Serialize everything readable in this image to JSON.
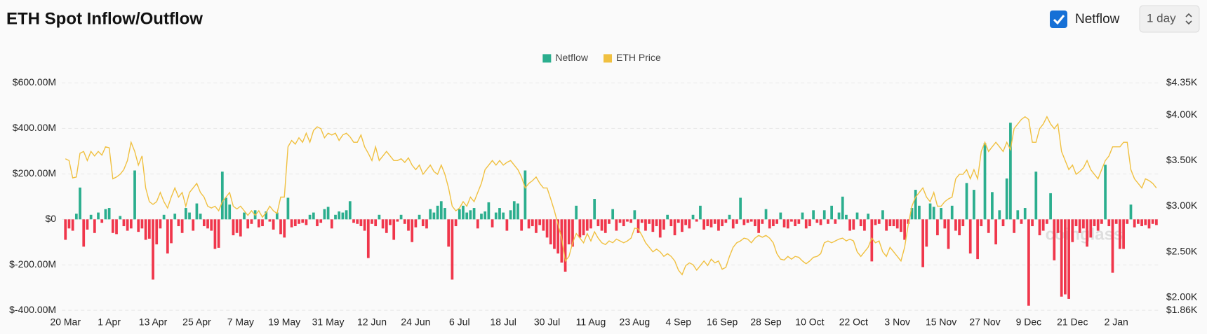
{
  "chart_data": {
    "type": "bar",
    "title": "ETH Spot Inflow/Outflow",
    "categories": [
      "20 Mar",
      null,
      null,
      null,
      null,
      null,
      null,
      null,
      null,
      null,
      null,
      null,
      "1 Apr",
      null,
      null,
      null,
      null,
      null,
      null,
      null,
      null,
      null,
      null,
      null,
      "13 Apr",
      null,
      null,
      null,
      null,
      null,
      null,
      null,
      null,
      null,
      null,
      null,
      "25 Apr",
      null,
      null,
      null,
      null,
      null,
      null,
      null,
      null,
      null,
      null,
      null,
      "7 May",
      null,
      null,
      null,
      null,
      null,
      null,
      null,
      null,
      null,
      null,
      null,
      "19 May",
      null,
      null,
      null,
      null,
      null,
      null,
      null,
      null,
      null,
      null,
      null,
      "31 May",
      null,
      null,
      null,
      null,
      null,
      null,
      null,
      null,
      null,
      null,
      null,
      "12 Jun",
      null,
      null,
      null,
      null,
      null,
      null,
      null,
      null,
      null,
      null,
      null,
      "24 Jun",
      null,
      null,
      null,
      null,
      null,
      null,
      null,
      null,
      null,
      null,
      null,
      "6 Jul",
      null,
      null,
      null,
      null,
      null,
      null,
      null,
      null,
      null,
      null,
      null,
      "18 Jul",
      null,
      null,
      null,
      null,
      null,
      null,
      null,
      null,
      null,
      null,
      null,
      "30 Jul",
      null,
      null,
      null,
      null,
      null,
      null,
      null,
      null,
      null,
      null,
      null,
      "11 Aug",
      null,
      null,
      null,
      null,
      null,
      null,
      null,
      null,
      null,
      null,
      null,
      "23 Aug",
      null,
      null,
      null,
      null,
      null,
      null,
      null,
      null,
      null,
      null,
      null,
      "4 Sep",
      null,
      null,
      null,
      null,
      null,
      null,
      null,
      null,
      null,
      null,
      null,
      "16 Sep",
      null,
      null,
      null,
      null,
      null,
      null,
      null,
      null,
      null,
      null,
      null,
      "28 Sep",
      null,
      null,
      null,
      null,
      null,
      null,
      null,
      null,
      null,
      null,
      null,
      "10 Oct",
      null,
      null,
      null,
      null,
      null,
      null,
      null,
      null,
      null,
      null,
      null,
      "22 Oct",
      null,
      null,
      null,
      null,
      null,
      null,
      null,
      null,
      null,
      null,
      null,
      "3 Nov",
      null,
      null,
      null,
      null,
      null,
      null,
      null,
      null,
      null,
      null,
      null,
      "15 Nov",
      null,
      null,
      null,
      null,
      null,
      null,
      null,
      null,
      null,
      null,
      null,
      "27 Nov",
      null,
      null,
      null,
      null,
      null,
      null,
      null,
      null,
      null,
      null,
      null,
      "9 Dec",
      null,
      null,
      null,
      null,
      null,
      null,
      null,
      null,
      null,
      null,
      null,
      "21 Dec",
      null,
      null,
      null,
      null,
      null,
      null,
      null,
      null,
      null,
      null,
      null,
      "2 Jan",
      null,
      null,
      null,
      null,
      null,
      null,
      null,
      null,
      null,
      null,
      null
    ],
    "series": [
      {
        "name": "Netflow",
        "color": "#2bae8e",
        "negative_color": "#f0364b",
        "values": [
          -90,
          -40,
          -50,
          25,
          140,
          -120,
          -45,
          20,
          -60,
          30,
          -15,
          45,
          50,
          -60,
          -65,
          15,
          -30,
          -50,
          -40,
          215,
          -55,
          -40,
          -90,
          -85,
          -265,
          -110,
          -40,
          20,
          -150,
          -105,
          25,
          -30,
          -60,
          50,
          30,
          -50,
          70,
          25,
          -30,
          -40,
          -50,
          -130,
          -125,
          210,
          95,
          65,
          -70,
          -60,
          -75,
          30,
          -40,
          -20,
          40,
          -35,
          -30,
          35,
          -10,
          -45,
          30,
          -65,
          -80,
          95,
          -35,
          -30,
          -20,
          -15,
          -25,
          20,
          30,
          -30,
          -15,
          45,
          55,
          -40,
          20,
          35,
          30,
          40,
          80,
          -15,
          -20,
          -30,
          -50,
          -170,
          -20,
          -30,
          20,
          -40,
          -60,
          -25,
          -90,
          -10,
          20,
          -20,
          -50,
          -100,
          -35,
          20,
          -30,
          -40,
          45,
          30,
          60,
          80,
          50,
          -120,
          -265,
          -30,
          45,
          60,
          30,
          40,
          50,
          -40,
          25,
          35,
          75,
          -35,
          30,
          50,
          30,
          -50,
          40,
          80,
          70,
          -50,
          215,
          -40,
          -30,
          -60,
          -25,
          -50,
          -80,
          -110,
          -130,
          -150,
          -190,
          -230,
          -110,
          -120,
          60,
          -80,
          -70,
          -50,
          -40,
          90,
          -30,
          -50,
          -60,
          -20,
          45,
          -50,
          -15,
          -30,
          -10,
          -15,
          40,
          -60,
          -15,
          -50,
          -20,
          -55,
          -30,
          -80,
          -45,
          20,
          -30,
          -70,
          -15,
          -55,
          -25,
          -40,
          20,
          -10,
          60,
          -45,
          -30,
          -35,
          -20,
          -50,
          -30,
          -15,
          20,
          -40,
          -20,
          95,
          -25,
          -15,
          -10,
          -30,
          -60,
          -20,
          45,
          -40,
          -30,
          -20,
          30,
          -35,
          -40,
          -10,
          -30,
          -20,
          30,
          -40,
          -30,
          40,
          -15,
          -25,
          40,
          -20,
          60,
          -20,
          30,
          100,
          20,
          -50,
          -45,
          30,
          -30,
          -50,
          25,
          -185,
          -25,
          -20,
          40,
          -50,
          -30,
          -30,
          -40,
          -55,
          -90,
          -20,
          50,
          130,
          60,
          -210,
          -120,
          70,
          55,
          -70,
          50,
          -40,
          -130,
          60,
          -50,
          -70,
          -30,
          160,
          -150,
          130,
          -175,
          -30,
          335,
          -60,
          120,
          -110,
          40,
          -30,
          180,
          425,
          -60,
          40,
          -20,
          50,
          -380,
          -30,
          210,
          -70,
          -50,
          -20,
          115,
          -180,
          -60,
          -340,
          -330,
          -350,
          -100,
          -30,
          -60,
          -40,
          -120,
          -80,
          -30,
          -50,
          -20,
          240,
          -30,
          -235,
          -20,
          -130,
          -130,
          -20,
          65,
          -35,
          -20,
          -30,
          -25,
          -40,
          -20,
          -25
        ]
      },
      {
        "name": "ETH Price",
        "color": "#f0c040",
        "axis": "y2",
        "values": [
          3520,
          3500,
          3310,
          3320,
          3580,
          3600,
          3500,
          3600,
          3550,
          3600,
          3560,
          3650,
          3640,
          3300,
          3320,
          3350,
          3400,
          3500,
          3700,
          3600,
          3450,
          3550,
          3200,
          3050,
          3020,
          3050,
          3150,
          3050,
          2980,
          3100,
          3200,
          3100,
          3150,
          3000,
          3150,
          3200,
          3250,
          3150,
          3100,
          3000,
          2980,
          3000,
          2950,
          3050,
          3100,
          3150,
          3000,
          2970,
          3000,
          2950,
          2900,
          2950,
          2900,
          2950,
          2880,
          2930,
          3000,
          2950,
          2920,
          3100,
          3100,
          3650,
          3720,
          3680,
          3750,
          3700,
          3800,
          3700,
          3830,
          3870,
          3850,
          3750,
          3800,
          3780,
          3800,
          3720,
          3780,
          3800,
          3760,
          3700,
          3700,
          3780,
          3650,
          3580,
          3500,
          3650,
          3500,
          3550,
          3600,
          3550,
          3500,
          3500,
          3520,
          3480,
          3530,
          3450,
          3400,
          3450,
          3350,
          3400,
          3450,
          3380,
          3350,
          3450,
          3350,
          3200,
          3000,
          2950,
          2980,
          3050,
          3000,
          3100,
          3050,
          3150,
          3250,
          3400,
          3450,
          3500,
          3450,
          3500,
          3450,
          3480,
          3500,
          3450,
          3400,
          3320,
          3200,
          3250,
          3280,
          3320,
          3250,
          3200,
          3200,
          3080,
          2950,
          2800,
          2650,
          2400,
          2450,
          2600,
          2700,
          2650,
          2600,
          2700,
          2620,
          2720,
          2650,
          2600,
          2580,
          2620,
          2600,
          2640,
          2620,
          2600,
          2620,
          2650,
          2760,
          2750,
          2680,
          2600,
          2550,
          2500,
          2530,
          2500,
          2450,
          2480,
          2450,
          2400,
          2300,
          2250,
          2350,
          2380,
          2360,
          2300,
          2350,
          2400,
          2350,
          2420,
          2380,
          2400,
          2310,
          2330,
          2450,
          2550,
          2600,
          2620,
          2650,
          2640,
          2600,
          2650,
          2680,
          2660,
          2680,
          2650,
          2600,
          2480,
          2420,
          2410,
          2450,
          2420,
          2450,
          2440,
          2400,
          2370,
          2400,
          2440,
          2450,
          2480,
          2600,
          2620,
          2600,
          2620,
          2640,
          2650,
          2620,
          2640,
          2620,
          2500,
          2450,
          2500,
          2550,
          2650,
          2600,
          2620,
          2500,
          2450,
          2550,
          2500,
          2450,
          2400,
          2550,
          2800,
          3000,
          3100,
          3150,
          3200,
          3100,
          3050,
          3150,
          3000,
          3000,
          3050,
          3080,
          3100,
          3300,
          3350,
          3350,
          3400,
          3300,
          3400,
          3300,
          3600,
          3700,
          3600,
          3650,
          3700,
          3650,
          3600,
          3700,
          3620,
          3850,
          3900,
          3950,
          3980,
          3950,
          3700,
          3700,
          3850,
          3900,
          3980,
          3900,
          3850,
          3900,
          3600,
          3500,
          3400,
          3450,
          3350,
          3380,
          3420,
          3500,
          3400,
          3350,
          3300,
          3400,
          3500,
          3550,
          3650,
          3650,
          3650,
          3700,
          3700,
          3400,
          3300,
          3250,
          3200,
          3300,
          3280,
          3250,
          3200
        ]
      }
    ],
    "ylim": [
      -400,
      600
    ],
    "yticks": [
      {
        "value": -400,
        "label": "$-400.00M"
      },
      {
        "value": -200,
        "label": "$-200.00M"
      },
      {
        "value": 0,
        "label": "$0"
      },
      {
        "value": 200,
        "label": "$200.00M"
      },
      {
        "value": 400,
        "label": "$400.00M"
      },
      {
        "value": 600,
        "label": "$600.00M"
      }
    ],
    "y2lim": [
      1860,
      4350
    ],
    "y2ticks": [
      {
        "value": 1860,
        "label": "$1.86K"
      },
      {
        "value": 2000,
        "label": "$2.00K"
      },
      {
        "value": 2500,
        "label": "$2.50K"
      },
      {
        "value": 3000,
        "label": "$3.00K"
      },
      {
        "value": 3500,
        "label": "$3.50K"
      },
      {
        "value": 4000,
        "label": "$4.00K"
      },
      {
        "value": 4350,
        "label": "$4.35K"
      }
    ],
    "grid": true,
    "watermark": "coinglass"
  },
  "controls": {
    "toggle": "Netflow",
    "interval": "1 day"
  }
}
